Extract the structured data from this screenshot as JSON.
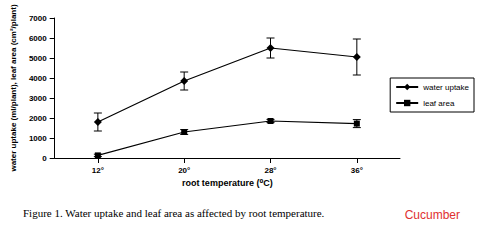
{
  "chart_data": {
    "type": "line",
    "caption": "Figure 1. Water uptake and leaf area as affected by root temperature.",
    "annotation": "Cucumber",
    "x_label": "root temperature (⁰C)",
    "y_label": "water uptake (ml/plant), leaf area (cm²/plant)",
    "categories": [
      "12°",
      "20°",
      "28°",
      "36°"
    ],
    "series": [
      {
        "name": "water uptake",
        "color": "#000000",
        "marker": "diamond",
        "values": [
          1800,
          3850,
          5500,
          5050
        ],
        "errors": [
          450,
          450,
          500,
          900
        ]
      },
      {
        "name": "leaf area",
        "color": "#000000",
        "marker": "square",
        "values": [
          130,
          1300,
          1850,
          1720
        ],
        "errors": [
          60,
          120,
          80,
          200
        ]
      }
    ],
    "ylim": [
      0,
      7000
    ],
    "yticks": [
      0,
      1000,
      2000,
      3000,
      4000,
      5000,
      6000,
      7000
    ],
    "grid": false,
    "legend": "right"
  }
}
